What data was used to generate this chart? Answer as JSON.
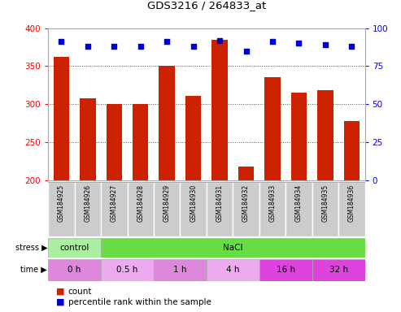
{
  "title": "GDS3216 / 264833_at",
  "samples": [
    "GSM184925",
    "GSM184926",
    "GSM184927",
    "GSM184928",
    "GSM184929",
    "GSM184930",
    "GSM184931",
    "GSM184932",
    "GSM184933",
    "GSM184934",
    "GSM184935",
    "GSM184936"
  ],
  "count_values": [
    362,
    308,
    300,
    300,
    350,
    311,
    385,
    218,
    335,
    315,
    318,
    278
  ],
  "percentile_values": [
    91,
    88,
    88,
    88,
    91,
    88,
    92,
    85,
    91,
    90,
    89,
    88
  ],
  "ymin": 200,
  "ymax": 400,
  "yticks": [
    200,
    250,
    300,
    350,
    400
  ],
  "y2min": 0,
  "y2max": 100,
  "y2ticks": [
    0,
    25,
    50,
    75,
    100
  ],
  "bar_color": "#cc2200",
  "dot_color": "#0000cc",
  "stress_groups": [
    {
      "label": "control",
      "span": [
        0,
        2
      ],
      "color": "#aaeea0"
    },
    {
      "label": "NaCl",
      "span": [
        2,
        12
      ],
      "color": "#66dd44"
    }
  ],
  "time_groups": [
    {
      "label": "0 h",
      "span": [
        0,
        2
      ],
      "color": "#dd88dd"
    },
    {
      "label": "0.5 h",
      "span": [
        2,
        4
      ],
      "color": "#eeaaee"
    },
    {
      "label": "1 h",
      "span": [
        4,
        6
      ],
      "color": "#dd88dd"
    },
    {
      "label": "4 h",
      "span": [
        6,
        8
      ],
      "color": "#eeaaee"
    },
    {
      "label": "16 h",
      "span": [
        8,
        10
      ],
      "color": "#dd44dd"
    },
    {
      "label": "32 h",
      "span": [
        10,
        12
      ],
      "color": "#dd44dd"
    }
  ],
  "stress_label": "stress",
  "time_label": "time",
  "legend_count": "count",
  "legend_percentile": "percentile rank within the sample",
  "grid_color": "#555555",
  "background_color": "#ffffff",
  "plot_bg": "#ffffff",
  "label_bg": "#cccccc"
}
